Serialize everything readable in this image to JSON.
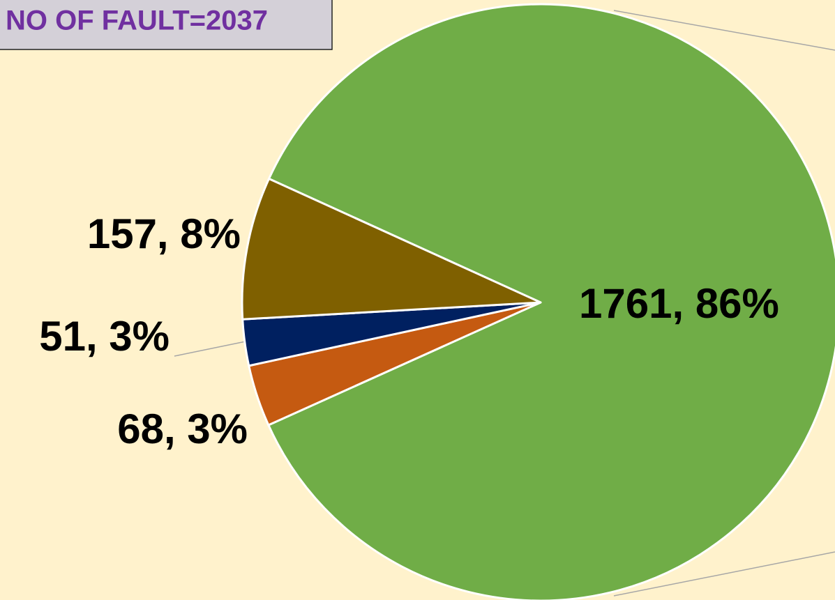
{
  "chart_data": {
    "type": "pie",
    "title": "NO OF FAULT=2037",
    "categories": [
      null,
      null,
      null,
      null
    ],
    "values": [
      1761,
      68,
      51,
      157
    ],
    "value_labels": [
      "1761, 86%",
      "68, 3%",
      "51, 3%",
      "157, 8%"
    ],
    "colors": [
      "#70ad47",
      "#c55a11",
      "#002060",
      "#7f6000"
    ]
  }
}
